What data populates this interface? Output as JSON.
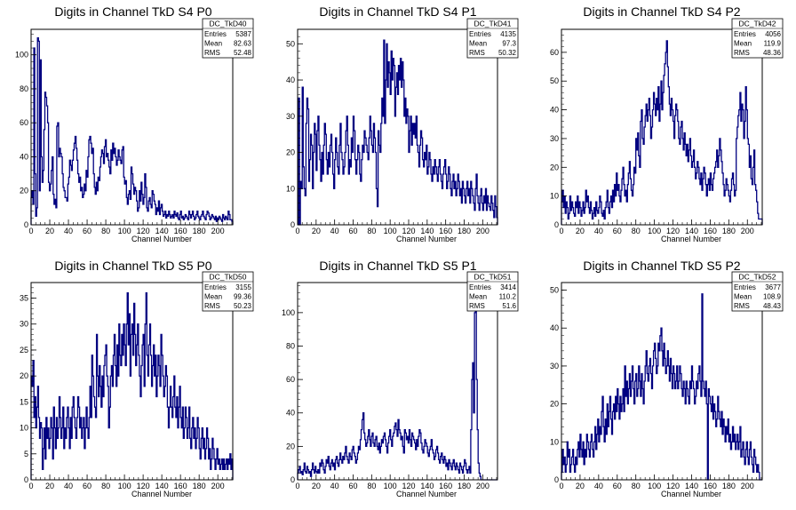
{
  "chart_data": [
    {
      "type": "histogram",
      "title": "Digits in Channel TkD S4 P0",
      "xlabel": "Channel Number",
      "ylabel": "",
      "xlim": [
        0,
        216
      ],
      "ylim": [
        0,
        115
      ],
      "xticks": [
        0,
        20,
        40,
        60,
        80,
        100,
        120,
        140,
        160,
        180,
        200
      ],
      "yticks": [
        0,
        20,
        40,
        60,
        80,
        100
      ],
      "stats": {
        "name": "DC_TkD40",
        "entries": "5387",
        "mean": "82.63",
        "rms": "52.48"
      },
      "values": [
        16,
        20,
        12,
        104,
        30,
        5,
        10,
        110,
        108,
        20,
        97,
        40,
        25,
        32,
        56,
        78,
        75,
        70,
        60,
        25,
        20,
        24,
        32,
        40,
        18,
        12,
        15,
        10,
        58,
        60,
        40,
        45,
        42,
        40,
        30,
        22,
        20,
        16,
        16,
        14,
        24,
        28,
        38,
        35,
        32,
        38,
        44,
        48,
        52,
        45,
        38,
        30,
        25,
        28,
        20,
        22,
        16,
        18,
        24,
        20,
        32,
        28,
        40,
        50,
        52,
        48,
        42,
        45,
        30,
        22,
        18,
        25,
        20,
        28,
        26,
        34,
        40,
        44,
        42,
        36,
        46,
        50,
        40,
        42,
        38,
        34,
        30,
        44,
        38,
        48,
        42,
        45,
        40,
        35,
        38,
        44,
        40,
        38,
        36,
        44,
        46,
        28,
        24,
        26,
        16,
        12,
        18,
        20,
        15,
        34,
        30,
        24,
        18,
        22,
        20,
        14,
        8,
        10,
        20,
        14,
        25,
        18,
        12,
        16,
        30,
        22,
        10,
        8,
        14,
        16,
        12,
        10,
        20,
        18,
        14,
        12,
        6,
        10,
        8,
        14,
        6,
        10,
        12,
        8,
        5,
        6,
        8,
        4,
        6,
        5,
        8,
        6,
        4,
        5,
        6,
        4,
        8,
        6,
        5,
        7,
        4,
        3,
        6,
        8,
        4,
        5,
        3,
        4,
        6,
        5,
        4,
        3,
        8,
        6,
        4,
        6,
        8,
        5,
        3,
        4,
        6,
        8,
        5,
        4,
        3,
        5,
        6,
        8,
        5,
        4,
        3,
        6,
        8,
        7,
        5,
        3,
        4,
        6,
        5,
        4,
        3,
        5,
        2,
        4,
        3,
        5,
        4,
        3,
        2,
        6,
        4,
        3,
        5,
        4,
        3,
        8,
        6,
        3,
        3,
        2
      ]
    },
    {
      "type": "histogram",
      "title": "Digits in Channel TkD S4 P1",
      "xlabel": "Channel Number",
      "ylabel": "",
      "xlim": [
        0,
        216
      ],
      "ylim": [
        0,
        54
      ],
      "xticks": [
        0,
        20,
        40,
        60,
        80,
        100,
        120,
        140,
        160,
        180,
        200
      ],
      "yticks": [
        0,
        10,
        20,
        30,
        40,
        50
      ],
      "stats": {
        "name": "DC_TkD41",
        "entries": "4135",
        "mean": "97.3",
        "rms": "50.32"
      },
      "values": [
        0,
        35,
        0,
        12,
        10,
        38,
        16,
        10,
        8,
        28,
        35,
        32,
        12,
        18,
        25,
        22,
        10,
        20,
        28,
        25,
        15,
        26,
        30,
        22,
        18,
        12,
        20,
        14,
        22,
        28,
        25,
        18,
        14,
        20,
        16,
        22,
        25,
        20,
        14,
        10,
        18,
        24,
        20,
        16,
        14,
        22,
        28,
        20,
        18,
        14,
        16,
        20,
        26,
        30,
        22,
        14,
        18,
        16,
        24,
        20,
        30,
        26,
        18,
        14,
        18,
        22,
        20,
        14,
        12,
        18,
        22,
        20,
        26,
        24,
        22,
        20,
        18,
        24,
        30,
        26,
        22,
        20,
        28,
        24,
        20,
        10,
        5,
        26,
        22,
        20,
        28,
        35,
        30,
        51,
        28,
        40,
        50,
        38,
        45,
        42,
        36,
        48,
        40,
        46,
        44,
        30,
        38,
        42,
        36,
        44,
        40,
        46,
        38,
        45,
        40,
        30,
        35,
        28,
        32,
        30,
        20,
        26,
        30,
        22,
        28,
        25,
        28,
        24,
        30,
        22,
        20,
        16,
        22,
        26,
        24,
        18,
        16,
        20,
        18,
        22,
        14,
        16,
        20,
        18,
        14,
        12,
        16,
        14,
        18,
        16,
        14,
        12,
        16,
        18,
        14,
        12,
        10,
        14,
        16,
        18,
        14,
        10,
        12,
        16,
        14,
        10,
        8,
        12,
        14,
        10,
        12,
        8,
        10,
        14,
        12,
        8,
        10,
        6,
        12,
        10,
        8,
        6,
        10,
        12,
        8,
        10,
        6,
        12,
        10,
        8,
        6,
        4,
        10,
        14,
        8,
        6,
        4,
        8,
        10,
        6,
        4,
        8,
        6,
        10,
        4,
        8,
        6,
        5,
        4,
        8,
        6,
        4,
        2,
        8,
        5,
        2
      ]
    },
    {
      "type": "histogram",
      "title": "Digits in Channel TkD S4 P2",
      "xlabel": "Channel Number",
      "ylabel": "",
      "xlim": [
        0,
        216
      ],
      "ylim": [
        0,
        68
      ],
      "xticks": [
        0,
        20,
        40,
        60,
        80,
        100,
        120,
        140,
        160,
        180,
        200
      ],
      "yticks": [
        0,
        10,
        20,
        30,
        40,
        50,
        60
      ],
      "stats": {
        "name": "DC_TkD42",
        "entries": "4056",
        "mean": "119.9",
        "rms": "48.36"
      },
      "values": [
        8,
        12,
        6,
        10,
        4,
        8,
        6,
        2,
        4,
        10,
        5,
        8,
        6,
        4,
        3,
        8,
        6,
        10,
        4,
        8,
        6,
        3,
        5,
        8,
        4,
        6,
        12,
        8,
        10,
        6,
        4,
        8,
        5,
        2,
        4,
        6,
        3,
        8,
        5,
        4,
        6,
        10,
        8,
        4,
        3,
        5,
        2,
        6,
        8,
        12,
        6,
        4,
        8,
        10,
        6,
        12,
        8,
        14,
        10,
        18,
        12,
        14,
        10,
        8,
        12,
        16,
        20,
        14,
        10,
        12,
        8,
        14,
        18,
        22,
        16,
        12,
        10,
        14,
        20,
        18,
        30,
        26,
        32,
        24,
        20,
        36,
        40,
        30,
        28,
        34,
        38,
        42,
        36,
        40,
        44,
        38,
        30,
        34,
        40,
        46,
        42,
        38,
        44,
        40,
        48,
        36,
        42,
        50,
        40,
        46,
        52,
        56,
        60,
        64,
        55,
        48,
        42,
        38,
        44,
        40,
        36,
        30,
        38,
        42,
        40,
        36,
        30,
        28,
        34,
        36,
        30,
        26,
        32,
        28,
        24,
        28,
        22,
        26,
        30,
        24,
        20,
        22,
        26,
        20,
        16,
        18,
        22,
        20,
        16,
        14,
        18,
        12,
        16,
        20,
        18,
        14,
        10,
        14,
        16,
        12,
        18,
        14,
        12,
        16,
        18,
        20,
        22,
        26,
        20,
        24,
        30,
        26,
        22,
        18,
        14,
        10,
        12,
        16,
        14,
        12,
        10,
        8,
        12,
        16,
        18,
        14,
        10,
        12,
        30,
        34,
        38,
        40,
        46,
        36,
        42,
        40,
        30,
        36,
        48,
        40,
        30,
        28,
        20,
        24,
        16,
        14,
        20,
        26,
        14,
        12,
        8,
        4,
        2,
        2,
        2,
        2
      ]
    },
    {
      "type": "histogram",
      "title": "Digits in Channel TkD S5 P0",
      "xlabel": "Channel Number",
      "ylabel": "",
      "xlim": [
        0,
        216
      ],
      "ylim": [
        0,
        38
      ],
      "xticks": [
        0,
        20,
        40,
        60,
        80,
        100,
        120,
        140,
        160,
        180,
        200
      ],
      "yticks": [
        0,
        5,
        10,
        15,
        20,
        25,
        30,
        35
      ],
      "stats": {
        "name": "DC_TkD50",
        "entries": "3155",
        "mean": "99.36",
        "rms": "50.23"
      },
      "values": [
        20,
        18,
        23,
        12,
        16,
        10,
        14,
        18,
        12,
        8,
        11,
        10,
        2,
        6,
        10,
        4,
        12,
        8,
        10,
        6,
        8,
        12,
        10,
        4,
        14,
        10,
        6,
        12,
        8,
        10,
        16,
        12,
        8,
        10,
        14,
        6,
        10,
        8,
        12,
        14,
        10,
        6,
        12,
        8,
        14,
        16,
        12,
        10,
        8,
        12,
        16,
        14,
        10,
        12,
        8,
        10,
        12,
        6,
        10,
        14,
        10,
        8,
        12,
        18,
        12,
        24,
        20,
        16,
        14,
        12,
        28,
        20,
        16,
        22,
        18,
        14,
        20,
        16,
        22,
        24,
        26,
        20,
        18,
        10,
        14,
        20,
        22,
        18,
        24,
        28,
        22,
        18,
        26,
        20,
        30,
        24,
        22,
        28,
        24,
        30,
        26,
        22,
        30,
        36,
        26,
        32,
        20,
        28,
        30,
        24,
        34,
        28,
        22,
        26,
        30,
        24,
        20,
        16,
        22,
        26,
        28,
        18,
        30,
        36,
        24,
        20,
        26,
        30,
        24,
        18,
        22,
        26,
        20,
        24,
        16,
        20,
        24,
        22,
        18,
        28,
        24,
        20,
        16,
        18,
        22,
        20,
        14,
        10,
        14,
        18,
        14,
        12,
        16,
        20,
        14,
        12,
        16,
        10,
        14,
        18,
        12,
        10,
        14,
        8,
        10,
        14,
        12,
        8,
        10,
        14,
        8,
        6,
        10,
        12,
        8,
        10,
        6,
        8,
        12,
        10,
        6,
        4,
        8,
        10,
        6,
        8,
        4,
        6,
        10,
        8,
        4,
        6,
        2,
        4,
        8,
        6,
        4,
        2,
        4,
        6,
        3,
        4,
        2,
        3,
        4,
        2,
        4,
        2,
        3,
        4,
        2,
        4,
        3,
        5,
        2,
        4
      ]
    },
    {
      "type": "histogram",
      "title": "Digits in Channel TkD S5 P1",
      "xlabel": "Channel Number",
      "ylabel": "",
      "xlim": [
        0,
        216
      ],
      "ylim": [
        0,
        118
      ],
      "xticks": [
        0,
        20,
        40,
        60,
        80,
        100,
        120,
        140,
        160,
        180,
        200
      ],
      "yticks": [
        0,
        20,
        40,
        60,
        80,
        100
      ],
      "stats": {
        "name": "DC_TkD51",
        "entries": "3414",
        "mean": "110.2",
        "rms": "51.6"
      },
      "values": [
        4,
        6,
        8,
        4,
        5,
        3,
        6,
        10,
        5,
        4,
        8,
        6,
        4,
        5,
        2,
        6,
        10,
        6,
        4,
        8,
        5,
        4,
        6,
        4,
        10,
        8,
        12,
        10,
        6,
        4,
        8,
        12,
        10,
        14,
        8,
        6,
        10,
        12,
        8,
        10,
        6,
        12,
        14,
        10,
        8,
        12,
        16,
        12,
        10,
        14,
        12,
        16,
        20,
        14,
        12,
        10,
        16,
        14,
        12,
        18,
        20,
        16,
        14,
        10,
        12,
        16,
        20,
        18,
        24,
        30,
        36,
        40,
        28,
        24,
        20,
        22,
        26,
        30,
        24,
        20,
        26,
        28,
        22,
        20,
        24,
        26,
        20,
        18,
        22,
        16,
        20,
        24,
        22,
        26,
        28,
        24,
        20,
        16,
        22,
        26,
        30,
        24,
        20,
        26,
        28,
        32,
        34,
        30,
        26,
        36,
        30,
        28,
        24,
        26,
        20,
        16,
        30,
        28,
        24,
        26,
        22,
        30,
        24,
        20,
        28,
        26,
        24,
        22,
        18,
        24,
        20,
        26,
        30,
        28,
        22,
        18,
        16,
        20,
        24,
        22,
        20,
        16,
        14,
        18,
        20,
        24,
        18,
        16,
        12,
        14,
        18,
        20,
        16,
        12,
        10,
        14,
        16,
        12,
        10,
        14,
        12,
        8,
        10,
        6,
        12,
        10,
        8,
        6,
        10,
        12,
        8,
        6,
        10,
        8,
        6,
        4,
        10,
        8,
        6,
        4,
        8,
        12,
        10,
        6,
        4,
        6,
        8,
        4,
        30,
        60,
        70,
        40,
        100,
        112,
        60,
        30,
        10,
        4,
        2,
        0,
        0,
        0,
        0,
        0,
        0,
        0,
        0,
        0,
        0,
        0,
        0,
        0,
        0,
        0,
        0,
        0,
        0
      ]
    },
    {
      "type": "histogram",
      "title": "Digits in Channel TkD S5 P2",
      "xlabel": "Channel Number",
      "ylabel": "",
      "xlim": [
        0,
        216
      ],
      "ylim": [
        0,
        52
      ],
      "xticks": [
        0,
        20,
        40,
        60,
        80,
        100,
        120,
        140,
        160,
        180,
        200
      ],
      "yticks": [
        0,
        10,
        20,
        30,
        40,
        50
      ],
      "stats": {
        "name": "DC_TkD52",
        "entries": "3677",
        "mean": "108.9",
        "rms": "48.43"
      },
      "values": [
        2,
        8,
        4,
        6,
        2,
        4,
        10,
        6,
        8,
        2,
        4,
        6,
        8,
        4,
        2,
        6,
        4,
        8,
        10,
        6,
        12,
        8,
        6,
        10,
        4,
        8,
        6,
        12,
        10,
        8,
        6,
        10,
        12,
        8,
        6,
        10,
        14,
        8,
        12,
        16,
        10,
        14,
        12,
        18,
        22,
        14,
        10,
        16,
        12,
        20,
        14,
        18,
        22,
        16,
        12,
        18,
        20,
        16,
        22,
        18,
        24,
        20,
        16,
        22,
        18,
        20,
        24,
        18,
        30,
        22,
        26,
        20,
        24,
        28,
        22,
        26,
        30,
        24,
        20,
        26,
        28,
        22,
        24,
        30,
        26,
        22,
        28,
        24,
        20,
        26,
        30,
        34,
        28,
        26,
        30,
        32,
        28,
        24,
        30,
        34,
        36,
        32,
        28,
        30,
        36,
        34,
        38,
        40,
        34,
        30,
        36,
        32,
        28,
        30,
        34,
        30,
        26,
        32,
        28,
        24,
        30,
        28,
        24,
        26,
        30,
        24,
        26,
        30,
        28,
        24,
        22,
        26,
        24,
        20,
        26,
        24,
        22,
        20,
        26,
        24,
        30,
        26,
        24,
        20,
        22,
        26,
        24,
        28,
        30,
        26,
        22,
        49,
        26,
        24,
        22,
        26,
        20,
        0,
        24,
        22,
        20,
        18,
        22,
        16,
        20,
        18,
        14,
        16,
        22,
        18,
        16,
        14,
        18,
        12,
        16,
        14,
        10,
        14,
        12,
        16,
        10,
        12,
        8,
        10,
        14,
        10,
        12,
        8,
        10,
        12,
        8,
        10,
        14,
        6,
        8,
        10,
        6,
        4,
        8,
        10,
        6,
        4,
        8,
        10,
        6,
        4,
        2,
        8,
        6,
        4,
        2,
        4,
        2,
        0,
        0,
        0
      ]
    }
  ]
}
